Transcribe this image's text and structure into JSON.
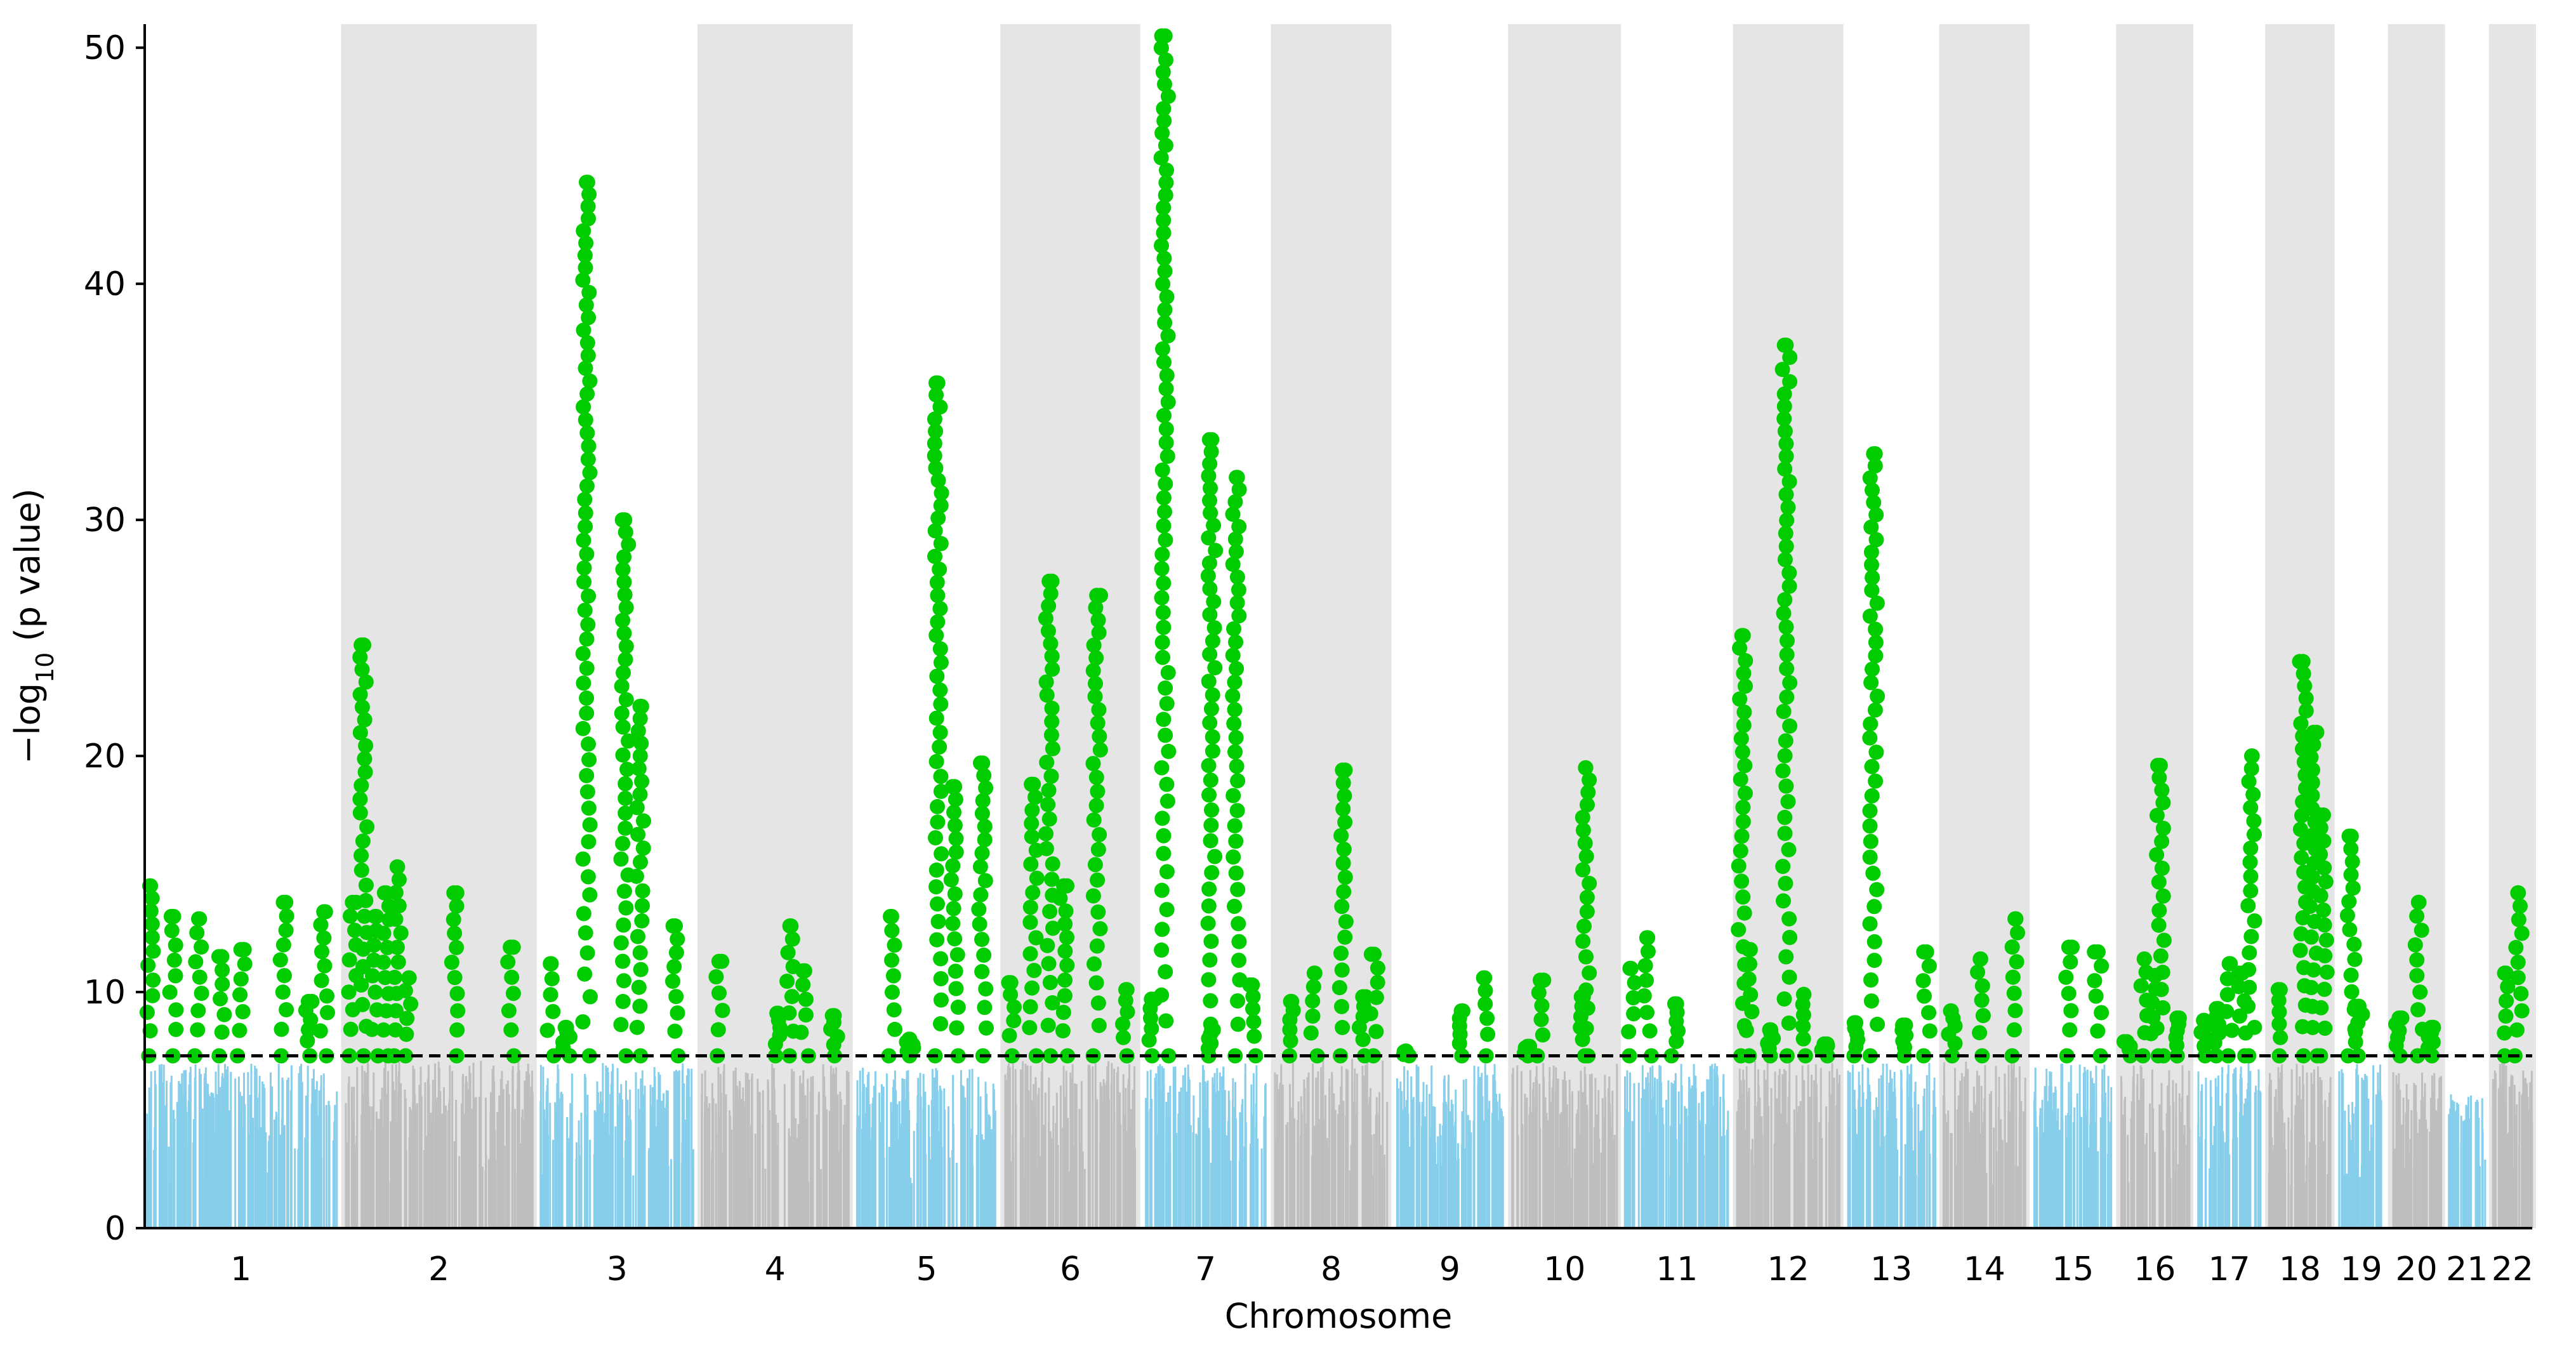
{
  "chart_data": {
    "type": "scatter",
    "subtype": "manhattan",
    "xlabel": "Chromosome",
    "ylabel_prefix": "−log",
    "ylabel_sub": "10",
    "ylabel_suffix": " (p value)",
    "ylim": [
      0,
      51
    ],
    "yticks": [
      0,
      10,
      20,
      30,
      40,
      50
    ],
    "significance_threshold": 7.3,
    "threshold_style": "dashed",
    "grid": false,
    "legend": "none",
    "colors": {
      "odd_chromosome": "#87ceeb",
      "even_chromosome": "#bebebe",
      "significant": "#00cc00",
      "band_shading": "#e5e5e5",
      "threshold_line": "#000000"
    },
    "chromosomes": [
      {
        "label": "1",
        "length": 249,
        "bg_max": 7.0,
        "peaks": [
          {
            "pos": 0.03,
            "y": 14.5
          },
          {
            "pos": 0.15,
            "y": 13.2
          },
          {
            "pos": 0.28,
            "y": 13.1
          },
          {
            "pos": 0.4,
            "y": 11.5
          },
          {
            "pos": 0.5,
            "y": 11.8
          },
          {
            "pos": 0.72,
            "y": 13.8
          },
          {
            "pos": 0.85,
            "y": 9.6
          },
          {
            "pos": 0.93,
            "y": 13.4
          }
        ]
      },
      {
        "label": "2",
        "length": 243,
        "bg_max": 7.1,
        "peaks": [
          {
            "pos": 0.04,
            "y": 13.8
          },
          {
            "pos": 0.1,
            "y": 24.7
          },
          {
            "pos": 0.16,
            "y": 13.2
          },
          {
            "pos": 0.22,
            "y": 14.2
          },
          {
            "pos": 0.28,
            "y": 15.3
          },
          {
            "pos": 0.34,
            "y": 10.6
          },
          {
            "pos": 0.58,
            "y": 14.2
          },
          {
            "pos": 0.88,
            "y": 11.9
          }
        ]
      },
      {
        "label": "3",
        "length": 198,
        "bg_max": 7.0,
        "peaks": [
          {
            "pos": 0.07,
            "y": 11.2
          },
          {
            "pos": 0.17,
            "y": 8.5
          },
          {
            "pos": 0.3,
            "y": 44.3
          },
          {
            "pos": 0.55,
            "y": 30.0
          },
          {
            "pos": 0.65,
            "y": 22.1
          },
          {
            "pos": 0.88,
            "y": 12.8
          }
        ]
      },
      {
        "label": "4",
        "length": 191,
        "bg_max": 7.0,
        "peaks": [
          {
            "pos": 0.12,
            "y": 11.3
          },
          {
            "pos": 0.52,
            "y": 9.1
          },
          {
            "pos": 0.6,
            "y": 12.8
          },
          {
            "pos": 0.7,
            "y": 10.9
          },
          {
            "pos": 0.9,
            "y": 9.0
          }
        ]
      },
      {
        "label": "5",
        "length": 181,
        "bg_max": 6.8,
        "peaks": [
          {
            "pos": 0.25,
            "y": 13.2
          },
          {
            "pos": 0.38,
            "y": 8.0
          },
          {
            "pos": 0.58,
            "y": 35.8
          },
          {
            "pos": 0.7,
            "y": 18.7
          },
          {
            "pos": 0.9,
            "y": 19.7
          }
        ]
      },
      {
        "label": "6",
        "length": 171,
        "bg_max": 7.1,
        "peaks": [
          {
            "pos": 0.05,
            "y": 10.4
          },
          {
            "pos": 0.22,
            "y": 18.8
          },
          {
            "pos": 0.34,
            "y": 27.4
          },
          {
            "pos": 0.45,
            "y": 14.5
          },
          {
            "pos": 0.7,
            "y": 26.8
          },
          {
            "pos": 0.92,
            "y": 10.1
          }
        ]
      },
      {
        "label": "7",
        "length": 159,
        "bg_max": 7.0,
        "peaks": [
          {
            "pos": 0.06,
            "y": 9.7
          },
          {
            "pos": 0.17,
            "y": 50.5
          },
          {
            "pos": 0.55,
            "y": 8.4
          },
          {
            "pos": 0.55,
            "y": 33.4
          },
          {
            "pos": 0.75,
            "y": 31.8
          },
          {
            "pos": 0.88,
            "y": 10.3
          }
        ]
      },
      {
        "label": "8",
        "length": 146,
        "bg_max": 7.2,
        "peaks": [
          {
            "pos": 0.15,
            "y": 9.6
          },
          {
            "pos": 0.35,
            "y": 10.8
          },
          {
            "pos": 0.6,
            "y": 19.4
          },
          {
            "pos": 0.78,
            "y": 9.8
          },
          {
            "pos": 0.88,
            "y": 11.6
          }
        ]
      },
      {
        "label": "9",
        "length": 141,
        "bg_max": 7.0,
        "peaks": [
          {
            "pos": 0.1,
            "y": 7.5
          },
          {
            "pos": 0.62,
            "y": 9.2
          },
          {
            "pos": 0.82,
            "y": 10.6
          }
        ]
      },
      {
        "label": "10",
        "length": 136,
        "bg_max": 7.0,
        "peaks": [
          {
            "pos": 0.15,
            "y": 7.7
          },
          {
            "pos": 0.27,
            "y": 10.5
          },
          {
            "pos": 0.66,
            "y": 9.8
          },
          {
            "pos": 0.7,
            "y": 19.5
          }
        ]
      },
      {
        "label": "11",
        "length": 135,
        "bg_max": 7.0,
        "peaks": [
          {
            "pos": 0.06,
            "y": 11.0
          },
          {
            "pos": 0.22,
            "y": 12.3
          },
          {
            "pos": 0.48,
            "y": 9.5
          }
        ]
      },
      {
        "label": "12",
        "length": 133,
        "bg_max": 7.1,
        "peaks": [
          {
            "pos": 0.05,
            "y": 25.1
          },
          {
            "pos": 0.12,
            "y": 11.8
          },
          {
            "pos": 0.33,
            "y": 8.4
          },
          {
            "pos": 0.48,
            "y": 37.4
          },
          {
            "pos": 0.65,
            "y": 9.9
          },
          {
            "pos": 0.85,
            "y": 7.8
          }
        ]
      },
      {
        "label": "13",
        "length": 114,
        "bg_max": 7.0,
        "peaks": [
          {
            "pos": 0.08,
            "y": 8.7
          },
          {
            "pos": 0.3,
            "y": 32.8
          },
          {
            "pos": 0.66,
            "y": 8.6
          },
          {
            "pos": 0.9,
            "y": 11.7
          }
        ]
      },
      {
        "label": "14",
        "length": 107,
        "bg_max": 7.1,
        "peaks": [
          {
            "pos": 0.1,
            "y": 9.2
          },
          {
            "pos": 0.45,
            "y": 11.4
          },
          {
            "pos": 0.88,
            "y": 13.1
          }
        ]
      },
      {
        "label": "15",
        "length": 102,
        "bg_max": 7.0,
        "peaks": [
          {
            "pos": 0.45,
            "y": 11.9
          },
          {
            "pos": 0.82,
            "y": 11.7
          }
        ]
      },
      {
        "label": "16",
        "length": 90,
        "bg_max": 7.0,
        "peaks": [
          {
            "pos": 0.1,
            "y": 7.9
          },
          {
            "pos": 0.35,
            "y": 11.4
          },
          {
            "pos": 0.5,
            "y": 10.7
          },
          {
            "pos": 0.58,
            "y": 19.6
          },
          {
            "pos": 0.82,
            "y": 8.9
          }
        ]
      },
      {
        "label": "17",
        "length": 83,
        "bg_max": 7.0,
        "peaks": [
          {
            "pos": 0.1,
            "y": 8.8
          },
          {
            "pos": 0.3,
            "y": 9.3
          },
          {
            "pos": 0.5,
            "y": 11.2
          },
          {
            "pos": 0.7,
            "y": 10.8
          },
          {
            "pos": 0.85,
            "y": 20.0
          }
        ]
      },
      {
        "label": "18",
        "length": 80,
        "bg_max": 7.0,
        "peaks": [
          {
            "pos": 0.15,
            "y": 10.1
          },
          {
            "pos": 0.55,
            "y": 24.0
          },
          {
            "pos": 0.72,
            "y": 21.0
          },
          {
            "pos": 0.88,
            "y": 17.5
          }
        ]
      },
      {
        "label": "19",
        "length": 59,
        "bg_max": 7.0,
        "peaks": [
          {
            "pos": 0.28,
            "y": 16.6
          },
          {
            "pos": 0.45,
            "y": 9.4
          }
        ]
      },
      {
        "label": "20",
        "length": 64,
        "bg_max": 6.9,
        "peaks": [
          {
            "pos": 0.15,
            "y": 8.9
          },
          {
            "pos": 0.55,
            "y": 13.8
          },
          {
            "pos": 0.8,
            "y": 8.5
          }
        ]
      },
      {
        "label": "21",
        "length": 47,
        "bg_max": 5.8,
        "peaks": []
      },
      {
        "label": "22",
        "length": 51,
        "bg_max": 7.1,
        "peaks": [
          {
            "pos": 0.3,
            "y": 10.8
          },
          {
            "pos": 0.65,
            "y": 14.2
          }
        ]
      }
    ]
  }
}
